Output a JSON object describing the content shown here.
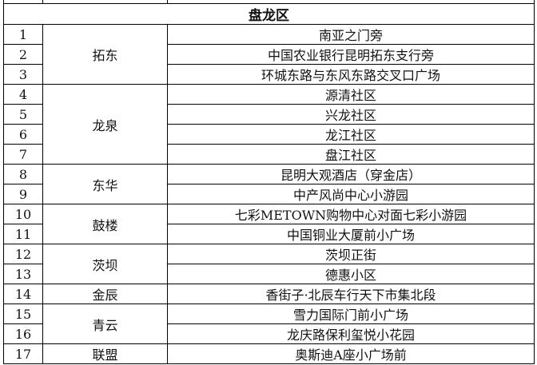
{
  "section_title": "盘龙区",
  "groups": [
    {
      "street": "拓东",
      "rows": [
        {
          "no": "1",
          "location": "南亚之门旁"
        },
        {
          "no": "2",
          "location": "中国农业银行昆明拓东支行旁"
        },
        {
          "no": "3",
          "location": "环城东路与东风东路交叉口广场"
        }
      ]
    },
    {
      "street": "龙泉",
      "rows": [
        {
          "no": "4",
          "location": "源清社区"
        },
        {
          "no": "5",
          "location": "兴龙社区"
        },
        {
          "no": "6",
          "location": "龙江社区"
        },
        {
          "no": "7",
          "location": "盘江社区"
        }
      ]
    },
    {
      "street": "东华",
      "rows": [
        {
          "no": "8",
          "location": "昆明大观酒店（穿金店）"
        },
        {
          "no": "9",
          "location": "中产风尚中心小游园"
        }
      ]
    },
    {
      "street": "鼓楼",
      "rows": [
        {
          "no": "10",
          "location": "七彩METOWN购物中心对面七彩小游园"
        },
        {
          "no": "11",
          "location": "中国铜业大厦前小广场"
        }
      ]
    },
    {
      "street": "茨坝",
      "rows": [
        {
          "no": "12",
          "location": "茨坝正街"
        },
        {
          "no": "13",
          "location": "德惠小区"
        }
      ]
    },
    {
      "street": "金辰",
      "rows": [
        {
          "no": "14",
          "location": "香街子·北辰车行天下市集北段"
        }
      ]
    },
    {
      "street": "青云",
      "rows": [
        {
          "no": "15",
          "location": "雪力国际门前小广场"
        },
        {
          "no": "16",
          "location": "龙庆路保利玺悦小花园"
        }
      ]
    },
    {
      "street": "联盟",
      "rows": [
        {
          "no": "17",
          "location": "奥斯迪A座小广场前"
        }
      ]
    }
  ]
}
